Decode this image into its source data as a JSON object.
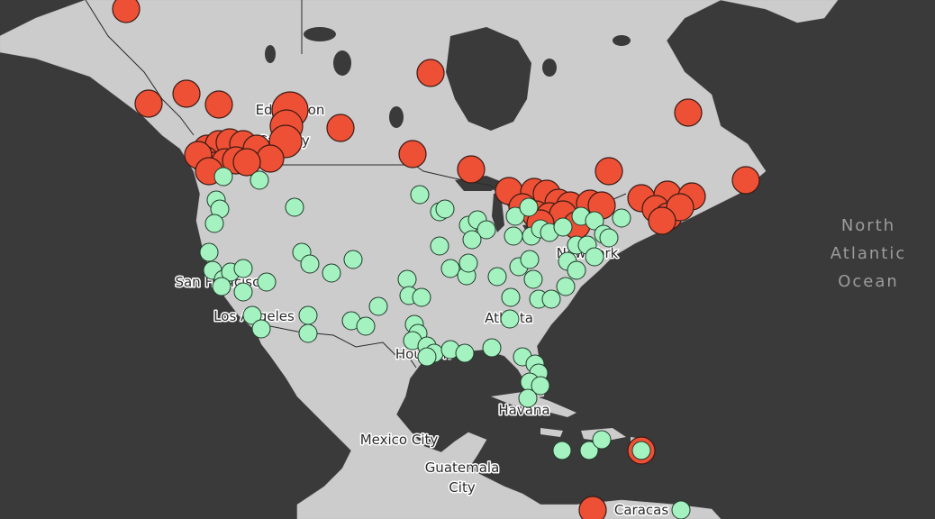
{
  "map": {
    "city_labels": [
      {
        "id": "edmonton",
        "text": "Edmonton"
      },
      {
        "id": "calgary",
        "text": "Calgary"
      },
      {
        "id": "san-francisco",
        "text": "San Francisco"
      },
      {
        "id": "los-angeles",
        "text": "Los Angeles"
      },
      {
        "id": "new-york",
        "text": "New York"
      },
      {
        "id": "atlanta",
        "text": "Atlanta"
      },
      {
        "id": "houston",
        "text": "Houston"
      },
      {
        "id": "havana",
        "text": "Havana"
      },
      {
        "id": "mexico-city",
        "text": "Mexico City"
      },
      {
        "id": "guatemala-city-line1",
        "text": "Guatemala"
      },
      {
        "id": "guatemala-city-line2",
        "text": "City"
      },
      {
        "id": "caracas",
        "text": "Caracas"
      }
    ],
    "ocean_label": [
      "North",
      "Atlantic",
      "Ocean"
    ],
    "colors": {
      "ocean": "#3a3a3a",
      "land": "#cccccc",
      "marker_red": "#ee5035",
      "marker_green": "#a3f2c0"
    },
    "legend": {
      "red": "marker-red",
      "green": "marker-green"
    }
  }
}
